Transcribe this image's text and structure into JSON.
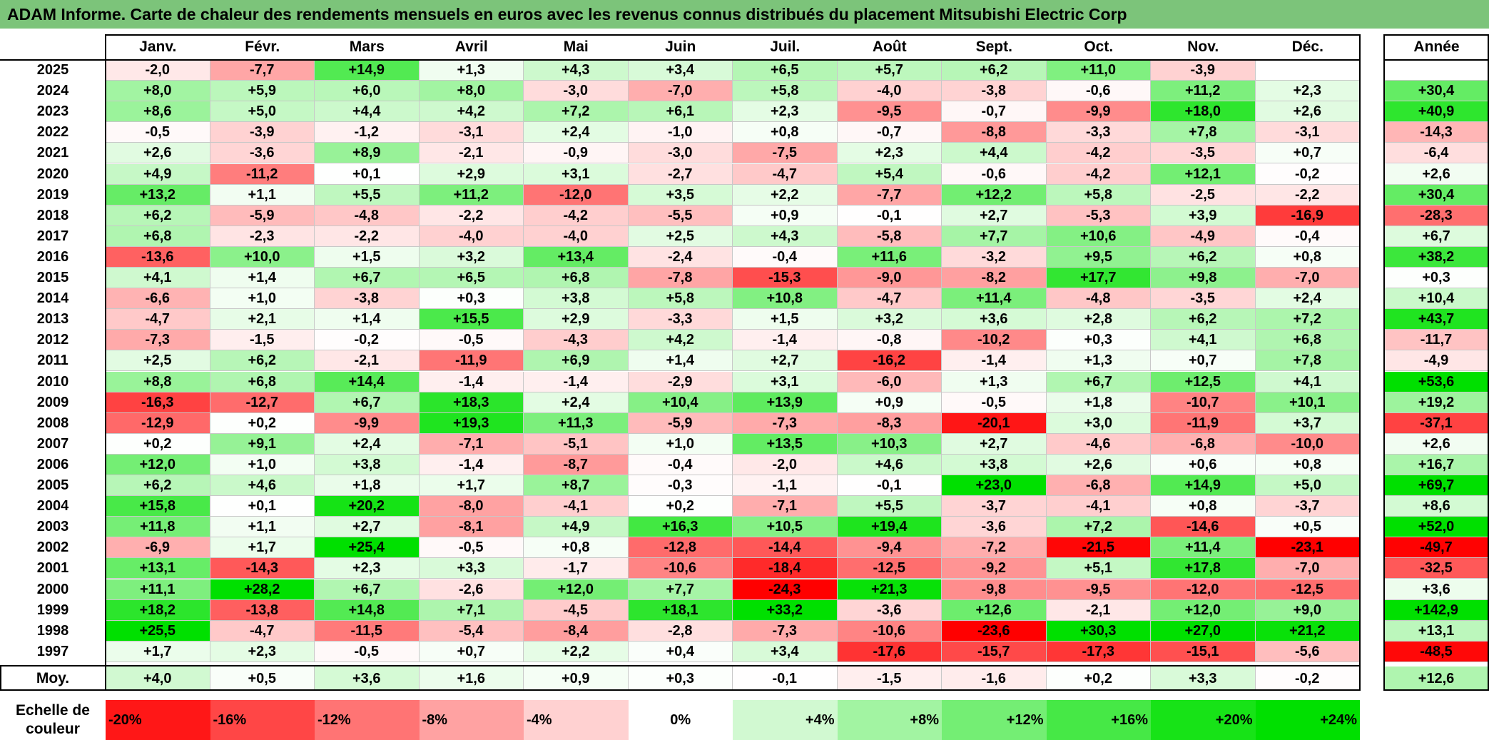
{
  "title": "ADAM Informe. Carte de chaleur des rendements mensuels en euros avec les revenus connus distribués du placement Mitsubishi Electric Corp",
  "chart_data": {
    "type": "heatmap",
    "title": "ADAM Informe. Carte de chaleur des rendements mensuels en euros avec les revenus connus distribués du placement Mitsubishi Electric Corp",
    "months": [
      "Janv.",
      "Févr.",
      "Mars",
      "Avril",
      "Mai",
      "Juin",
      "Juil.",
      "Août",
      "Sept.",
      "Oct.",
      "Nov.",
      "Déc."
    ],
    "year_header": "Année",
    "rows": [
      {
        "year": "2025",
        "values": [
          "-2,0",
          "-7,7",
          "+14,9",
          "+1,3",
          "+4,3",
          "+3,4",
          "+6,5",
          "+5,7",
          "+6,2",
          "+11,0",
          "-3,9",
          ""
        ],
        "annual": ""
      },
      {
        "year": "2024",
        "values": [
          "+8,0",
          "+5,9",
          "+6,0",
          "+8,0",
          "-3,0",
          "-7,0",
          "+5,8",
          "-4,0",
          "-3,8",
          "-0,6",
          "+11,2",
          "+2,3"
        ],
        "annual": "+30,4"
      },
      {
        "year": "2023",
        "values": [
          "+8,6",
          "+5,0",
          "+4,4",
          "+4,2",
          "+7,2",
          "+6,1",
          "+2,3",
          "-9,5",
          "-0,7",
          "-9,9",
          "+18,0",
          "+2,6"
        ],
        "annual": "+40,9"
      },
      {
        "year": "2022",
        "values": [
          "-0,5",
          "-3,9",
          "-1,2",
          "-3,1",
          "+2,4",
          "-1,0",
          "+0,8",
          "-0,7",
          "-8,8",
          "-3,3",
          "+7,8",
          "-3,1"
        ],
        "annual": "-14,3"
      },
      {
        "year": "2021",
        "values": [
          "+2,6",
          "-3,6",
          "+8,9",
          "-2,1",
          "-0,9",
          "-3,0",
          "-7,5",
          "+2,3",
          "+4,4",
          "-4,2",
          "-3,5",
          "+0,7"
        ],
        "annual": "-6,4"
      },
      {
        "year": "2020",
        "values": [
          "+4,9",
          "-11,2",
          "+0,1",
          "+2,9",
          "+3,1",
          "-2,7",
          "-4,7",
          "+5,4",
          "-0,6",
          "-4,2",
          "+12,1",
          "-0,2"
        ],
        "annual": "+2,6"
      },
      {
        "year": "2019",
        "values": [
          "+13,2",
          "+1,1",
          "+5,5",
          "+11,2",
          "-12,0",
          "+3,5",
          "+2,2",
          "-7,7",
          "+12,2",
          "+5,8",
          "-2,5",
          "-2,2"
        ],
        "annual": "+30,4"
      },
      {
        "year": "2018",
        "values": [
          "+6,2",
          "-5,9",
          "-4,8",
          "-2,2",
          "-4,2",
          "-5,5",
          "+0,9",
          "-0,1",
          "+2,7",
          "-5,3",
          "+3,9",
          "-16,9"
        ],
        "annual": "-28,3"
      },
      {
        "year": "2017",
        "values": [
          "+6,8",
          "-2,3",
          "-2,2",
          "-4,0",
          "-4,0",
          "+2,5",
          "+4,3",
          "-5,8",
          "+7,7",
          "+10,6",
          "-4,9",
          "-0,4"
        ],
        "annual": "+6,7"
      },
      {
        "year": "2016",
        "values": [
          "-13,6",
          "+10,0",
          "+1,5",
          "+3,2",
          "+13,4",
          "-2,4",
          "-0,4",
          "+11,6",
          "-3,2",
          "+9,5",
          "+6,2",
          "+0,8"
        ],
        "annual": "+38,2"
      },
      {
        "year": "2015",
        "values": [
          "+4,1",
          "+1,4",
          "+6,7",
          "+6,5",
          "+6,8",
          "-7,8",
          "-15,3",
          "-9,0",
          "-8,2",
          "+17,7",
          "+9,8",
          "-7,0"
        ],
        "annual": "+0,3"
      },
      {
        "year": "2014",
        "values": [
          "-6,6",
          "+1,0",
          "-3,8",
          "+0,3",
          "+3,8",
          "+5,8",
          "+10,8",
          "-4,7",
          "+11,4",
          "-4,8",
          "-3,5",
          "+2,4"
        ],
        "annual": "+10,4"
      },
      {
        "year": "2013",
        "values": [
          "-4,7",
          "+2,1",
          "+1,4",
          "+15,5",
          "+2,9",
          "-3,3",
          "+1,5",
          "+3,2",
          "+3,6",
          "+2,8",
          "+6,2",
          "+7,2"
        ],
        "annual": "+43,7"
      },
      {
        "year": "2012",
        "values": [
          "-7,3",
          "-1,5",
          "-0,2",
          "-0,5",
          "-4,3",
          "+4,2",
          "-1,4",
          "-0,8",
          "-10,2",
          "+0,3",
          "+4,1",
          "+6,8"
        ],
        "annual": "-11,7"
      },
      {
        "year": "2011",
        "values": [
          "+2,5",
          "+6,2",
          "-2,1",
          "-11,9",
          "+6,9",
          "+1,4",
          "+2,7",
          "-16,2",
          "-1,4",
          "+1,3",
          "+0,7",
          "+7,8"
        ],
        "annual": "-4,9"
      },
      {
        "year": "2010",
        "values": [
          "+8,8",
          "+6,8",
          "+14,4",
          "-1,4",
          "-1,4",
          "-2,9",
          "+3,1",
          "-6,0",
          "+1,3",
          "+6,7",
          "+12,5",
          "+4,1"
        ],
        "annual": "+53,6"
      },
      {
        "year": "2009",
        "values": [
          "-16,3",
          "-12,7",
          "+6,7",
          "+18,3",
          "+2,4",
          "+10,4",
          "+13,9",
          "+0,9",
          "-0,5",
          "+1,8",
          "-10,7",
          "+10,1"
        ],
        "annual": "+19,2"
      },
      {
        "year": "2008",
        "values": [
          "-12,9",
          "+0,2",
          "-9,9",
          "+19,3",
          "+11,3",
          "-5,9",
          "-7,3",
          "-8,3",
          "-20,1",
          "+3,0",
          "-11,9",
          "+3,7"
        ],
        "annual": "-37,1"
      },
      {
        "year": "2007",
        "values": [
          "+0,2",
          "+9,1",
          "+2,4",
          "-7,1",
          "-5,1",
          "+1,0",
          "+13,5",
          "+10,3",
          "+2,7",
          "-4,6",
          "-6,8",
          "-10,0"
        ],
        "annual": "+2,6"
      },
      {
        "year": "2006",
        "values": [
          "+12,0",
          "+1,0",
          "+3,8",
          "-1,4",
          "-8,7",
          "-0,4",
          "-2,0",
          "+4,6",
          "+3,8",
          "+2,6",
          "+0,6",
          "+0,8"
        ],
        "annual": "+16,7"
      },
      {
        "year": "2005",
        "values": [
          "+6,2",
          "+4,6",
          "+1,8",
          "+1,7",
          "+8,7",
          "-0,3",
          "-1,1",
          "-0,1",
          "+23,0",
          "-6,8",
          "+14,9",
          "+5,0"
        ],
        "annual": "+69,7"
      },
      {
        "year": "2004",
        "values": [
          "+15,8",
          "+0,1",
          "+20,2",
          "-8,0",
          "-4,1",
          "+0,2",
          "-7,1",
          "+5,5",
          "-3,7",
          "-4,1",
          "+0,8",
          "-3,7"
        ],
        "annual": "+8,6"
      },
      {
        "year": "2003",
        "values": [
          "+11,8",
          "+1,1",
          "+2,7",
          "-8,1",
          "+4,9",
          "+16,3",
          "+10,5",
          "+19,4",
          "-3,6",
          "+7,2",
          "-14,6",
          "+0,5"
        ],
        "annual": "+52,0"
      },
      {
        "year": "2002",
        "values": [
          "-6,9",
          "+1,7",
          "+25,4",
          "-0,5",
          "+0,8",
          "-12,8",
          "-14,4",
          "-9,4",
          "-7,2",
          "-21,5",
          "+11,4",
          "-23,1"
        ],
        "annual": "-49,7"
      },
      {
        "year": "2001",
        "values": [
          "+13,1",
          "-14,3",
          "+2,3",
          "+3,3",
          "-1,7",
          "-10,6",
          "-18,4",
          "-12,5",
          "-9,2",
          "+5,1",
          "+17,8",
          "-7,0"
        ],
        "annual": "-32,5"
      },
      {
        "year": "2000",
        "values": [
          "+11,1",
          "+28,2",
          "+6,7",
          "-2,6",
          "+12,0",
          "+7,7",
          "-24,3",
          "+21,3",
          "-9,8",
          "-9,5",
          "-12,0",
          "-12,5"
        ],
        "annual": "+3,6"
      },
      {
        "year": "1999",
        "values": [
          "+18,2",
          "-13,8",
          "+14,8",
          "+7,1",
          "-4,5",
          "+18,1",
          "+33,2",
          "-3,6",
          "+12,6",
          "-2,1",
          "+12,0",
          "+9,0"
        ],
        "annual": "+142,9"
      },
      {
        "year": "1998",
        "values": [
          "+25,5",
          "-4,7",
          "-11,5",
          "-5,4",
          "-8,4",
          "-2,8",
          "-7,3",
          "-10,6",
          "-23,6",
          "+30,3",
          "+27,0",
          "+21,2"
        ],
        "annual": "+13,1"
      },
      {
        "year": "1997",
        "values": [
          "+1,7",
          "+2,3",
          "-0,5",
          "+0,7",
          "+2,2",
          "+0,4",
          "+3,4",
          "-17,6",
          "-15,7",
          "-17,3",
          "-15,1",
          "-5,6"
        ],
        "annual": "-48,5"
      }
    ],
    "average": {
      "label": "Moy.",
      "values": [
        "+4,0",
        "+0,5",
        "+3,6",
        "+1,6",
        "+0,9",
        "+0,3",
        "-0,1",
        "-1,5",
        "-1,6",
        "+0,2",
        "+3,3",
        "-0,2"
      ],
      "annual": "+12,6"
    },
    "scale": {
      "label": "Echelle de couleur",
      "stops": [
        "-20%",
        "-16%",
        "-12%",
        "-8%",
        "-4%",
        "0%",
        "+4%",
        "+8%",
        "+12%",
        "+16%",
        "+20%",
        "+24%"
      ]
    },
    "colors": {
      "negative_max": "#ff0000",
      "neutral": "#ffffff",
      "positive_max": "#00e000",
      "title_bg": "#7cc47a"
    }
  }
}
